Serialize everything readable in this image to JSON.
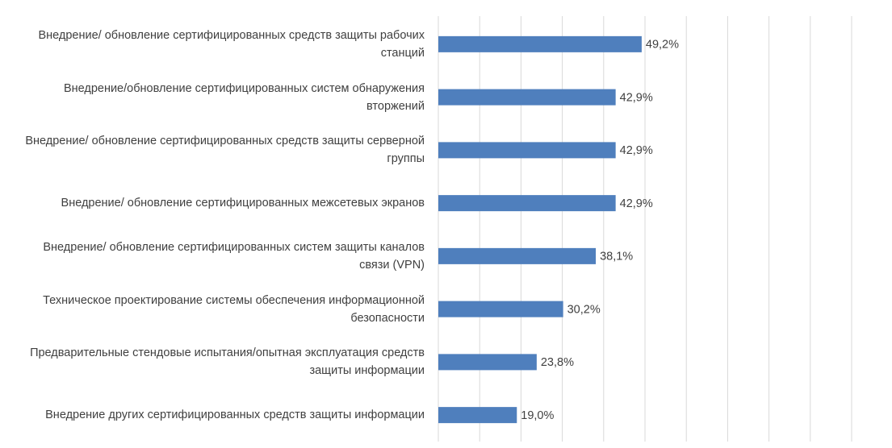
{
  "chart_data": {
    "type": "bar",
    "orientation": "horizontal",
    "categories": [
      "Внедрение/ обновление сертифицированных средств защиты рабочих станций",
      "Внедрение/обновление сертифицированных систем обнаружения вторжений",
      "Внедрение/ обновление сертифицированных средств защиты серверной группы",
      "Внедрение/ обновление сертифицированных межсетевых экранов",
      "Внедрение/ обновление сертифицированных систем защиты каналов связи (VPN)",
      "Техническое проектирование системы обеспечения информационной безопасности",
      "Предварительные стендовые испытания/опытная эксплуатация средств защиты информации",
      "Внедрение других сертифицированных средств защиты информации"
    ],
    "values": [
      49.2,
      42.9,
      42.9,
      42.9,
      38.1,
      30.2,
      23.8,
      19.0
    ],
    "value_labels": [
      "49,2%",
      "42,9%",
      "42,9%",
      "42,9%",
      "38,1%",
      "30,2%",
      "23,8%",
      "19,0%"
    ],
    "color": "#4f7fbd",
    "xlim": [
      0,
      100
    ],
    "xticks": [
      0,
      10,
      20,
      30,
      40,
      50,
      60,
      70,
      80,
      90,
      100
    ],
    "grid": true
  }
}
